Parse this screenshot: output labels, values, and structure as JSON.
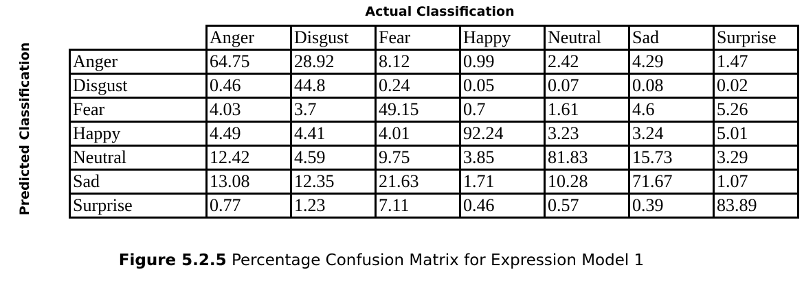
{
  "column_axis_label": "Actual Classification",
  "row_axis_label": "Predicted Classification",
  "matrix": {
    "columns": [
      "Anger",
      "Disgust",
      "Fear",
      "Happy",
      "Neutral",
      "Sad",
      "Surprise"
    ],
    "rows": [
      {
        "label": "Anger",
        "values": [
          "64.75",
          "28.92",
          "8.12",
          "0.99",
          "2.42",
          "4.29",
          "1.47"
        ]
      },
      {
        "label": "Disgust",
        "values": [
          "0.46",
          "44.8",
          "0.24",
          "0.05",
          "0.07",
          "0.08",
          "0.02"
        ]
      },
      {
        "label": "Fear",
        "values": [
          "4.03",
          "3.7",
          "49.15",
          "0.7",
          "1.61",
          "4.6",
          "5.26"
        ]
      },
      {
        "label": "Happy",
        "values": [
          "4.49",
          "4.41",
          "4.01",
          "92.24",
          "3.23",
          "3.24",
          "5.01"
        ]
      },
      {
        "label": "Neutral",
        "values": [
          "12.42",
          "4.59",
          "9.75",
          "3.85",
          "81.83",
          "15.73",
          "3.29"
        ]
      },
      {
        "label": "Sad",
        "values": [
          "13.08",
          "12.35",
          "21.63",
          "1.71",
          "10.28",
          "71.67",
          "1.07"
        ]
      },
      {
        "label": "Surprise",
        "values": [
          "0.77",
          "1.23",
          "7.11",
          "0.46",
          "0.57",
          "0.39",
          "83.89"
        ]
      }
    ]
  },
  "caption": {
    "figure_number": "Figure 5.2.5",
    "text": " Percentage Confusion Matrix for Expression Model 1"
  }
}
